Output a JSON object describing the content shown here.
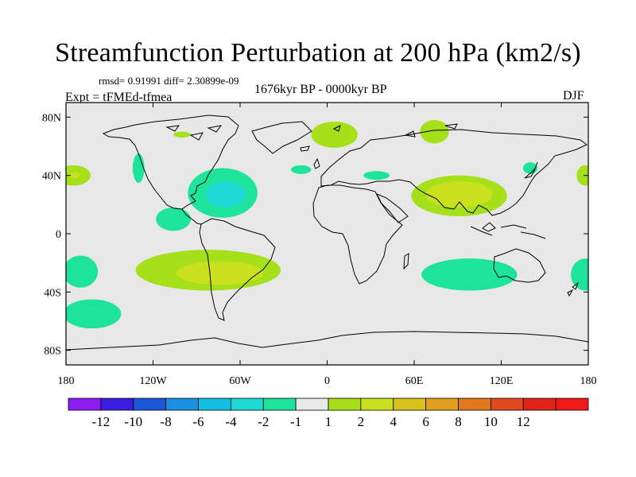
{
  "chart_data": {
    "type": "heatmap",
    "title": "Streamfunction Perturbation at 200 hPa (km2/s)",
    "stats_text": "rmsd= 0.91991  diff= 2.30899e-09",
    "period": "1676kyr BP - 0000kyr BP",
    "experiment": "Expt = tFMEd-tfmea",
    "season": "DJF",
    "x_range": [
      -180,
      180
    ],
    "y_range": [
      -90,
      90
    ],
    "x_ticks": [
      {
        "value": -180,
        "label": "180"
      },
      {
        "value": -120,
        "label": "120W"
      },
      {
        "value": -60,
        "label": "60W"
      },
      {
        "value": 0,
        "label": "0"
      },
      {
        "value": 60,
        "label": "60E"
      },
      {
        "value": 120,
        "label": "120E"
      },
      {
        "value": 180,
        "label": "180"
      }
    ],
    "y_ticks": [
      {
        "value": 80,
        "label": "80N"
      },
      {
        "value": 40,
        "label": "40N"
      },
      {
        "value": 0,
        "label": "0"
      },
      {
        "value": -40,
        "label": "40S"
      },
      {
        "value": -80,
        "label": "80S"
      }
    ],
    "colorbar": {
      "colors": [
        "#8d1cf0",
        "#3b1ee0",
        "#1d57d9",
        "#1c8fe0",
        "#12bfe3",
        "#1ed9d4",
        "#1ee39a",
        "#e8e8e8",
        "#a6e01a",
        "#cbe01e",
        "#d9c21e",
        "#e0a01e",
        "#e0781e",
        "#e04a1e",
        "#e0241a",
        "#ee1a1a"
      ],
      "labels": [
        "-12",
        "-10",
        "-8",
        "-6",
        "-4",
        "-2",
        "-1",
        "1",
        "2",
        "4",
        "6",
        "8",
        "10",
        "12"
      ]
    },
    "anomalies": [
      {
        "lon": 5,
        "lat": 68,
        "rx": 16,
        "ry": 9,
        "level": 1
      },
      {
        "lon": 74,
        "lat": 70,
        "rx": 10,
        "ry": 8,
        "level": 1
      },
      {
        "lon": -18,
        "lat": 44,
        "rx": 7,
        "ry": 3,
        "level": -1
      },
      {
        "lon": -100,
        "lat": 68,
        "rx": 6,
        "ry": 2,
        "level": 1
      },
      {
        "lon": -72,
        "lat": 28,
        "rx": 24,
        "ry": 17,
        "level": -1
      },
      {
        "lon": -70,
        "lat": 27,
        "rx": 14,
        "ry": 9,
        "level": -2
      },
      {
        "lon": -106,
        "lat": 10,
        "rx": 12,
        "ry": 8,
        "level": -1
      },
      {
        "lon": 91,
        "lat": 26,
        "rx": 33,
        "ry": 14,
        "level": 1
      },
      {
        "lon": 91,
        "lat": 27,
        "rx": 23,
        "ry": 9,
        "level": 2
      },
      {
        "lon": 34,
        "lat": 40,
        "rx": 9,
        "ry": 3,
        "level": -1
      },
      {
        "lon": -175,
        "lat": 40,
        "rx": 12,
        "ry": 7,
        "level": 1
      },
      {
        "lon": -174,
        "lat": 40,
        "rx": 4,
        "ry": 2,
        "level": 2
      },
      {
        "lon": -82,
        "lat": -25,
        "rx": 50,
        "ry": 14,
        "level": 1
      },
      {
        "lon": -74,
        "lat": -27,
        "rx": 30,
        "ry": 8,
        "level": 2
      },
      {
        "lon": 98,
        "lat": -28,
        "rx": 33,
        "ry": 11,
        "level": -1
      },
      {
        "lon": -170,
        "lat": -26,
        "rx": 12,
        "ry": 11,
        "level": -1
      },
      {
        "lon": -162,
        "lat": -55,
        "rx": 20,
        "ry": 10,
        "level": -1
      },
      {
        "lon": 178,
        "lat": -28,
        "rx": 10,
        "ry": 11,
        "level": -1
      },
      {
        "lon": 178,
        "lat": 40,
        "rx": 6,
        "ry": 7,
        "level": 1
      },
      {
        "lon": 140,
        "lat": 45,
        "rx": 5,
        "ry": 4,
        "level": -1
      },
      {
        "lon": -130,
        "lat": 45,
        "rx": 4,
        "ry": 10,
        "level": -1
      }
    ]
  }
}
